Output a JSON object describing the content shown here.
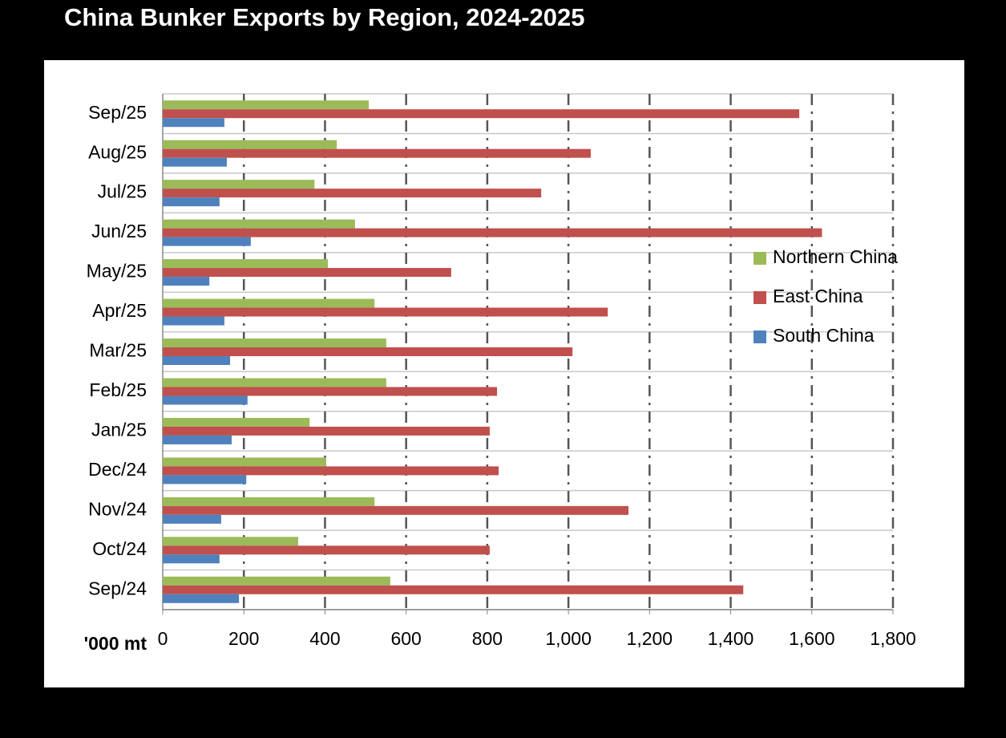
{
  "chart_data": {
    "type": "hbar",
    "title": "China Bunker Exports by Region, 2024-2025",
    "x_label": "'000 mt",
    "categories": [
      "Sep/25",
      "Aug/25",
      "Jul/25",
      "Jun/25",
      "May/25",
      "Apr/25",
      "Mar/25",
      "Feb/25",
      "Jan/25",
      "Dec/24",
      "Nov/24",
      "Oct/24",
      "Sep/24"
    ],
    "series": [
      {
        "name": "Northern China",
        "color": "#9bbb59",
        "values": [
          508,
          429,
          374,
          474,
          407,
          522,
          551,
          551,
          362,
          403,
          522,
          334,
          561
        ]
      },
      {
        "name": "East China",
        "color": "#c0504d",
        "values": [
          1569,
          1055,
          933,
          1625,
          711,
          1097,
          1010,
          824,
          806,
          828,
          1148,
          806,
          1431
        ]
      },
      {
        "name": "South China",
        "color": "#4f81bd",
        "values": [
          152,
          158,
          140,
          217,
          115,
          152,
          166,
          209,
          170,
          206,
          144,
          140,
          188
        ]
      }
    ],
    "xlim": [
      0,
      1800
    ],
    "xticks": [
      0,
      200,
      400,
      600,
      800,
      {
        "value": 1000,
        "label": "1,000"
      },
      {
        "value": 1200,
        "label": "1,200"
      },
      {
        "value": 1400,
        "label": "1,400"
      },
      {
        "value": 1600,
        "label": "1,600"
      },
      {
        "value": 1800,
        "label": "1,800"
      }
    ],
    "grid": true,
    "legend": "right"
  }
}
